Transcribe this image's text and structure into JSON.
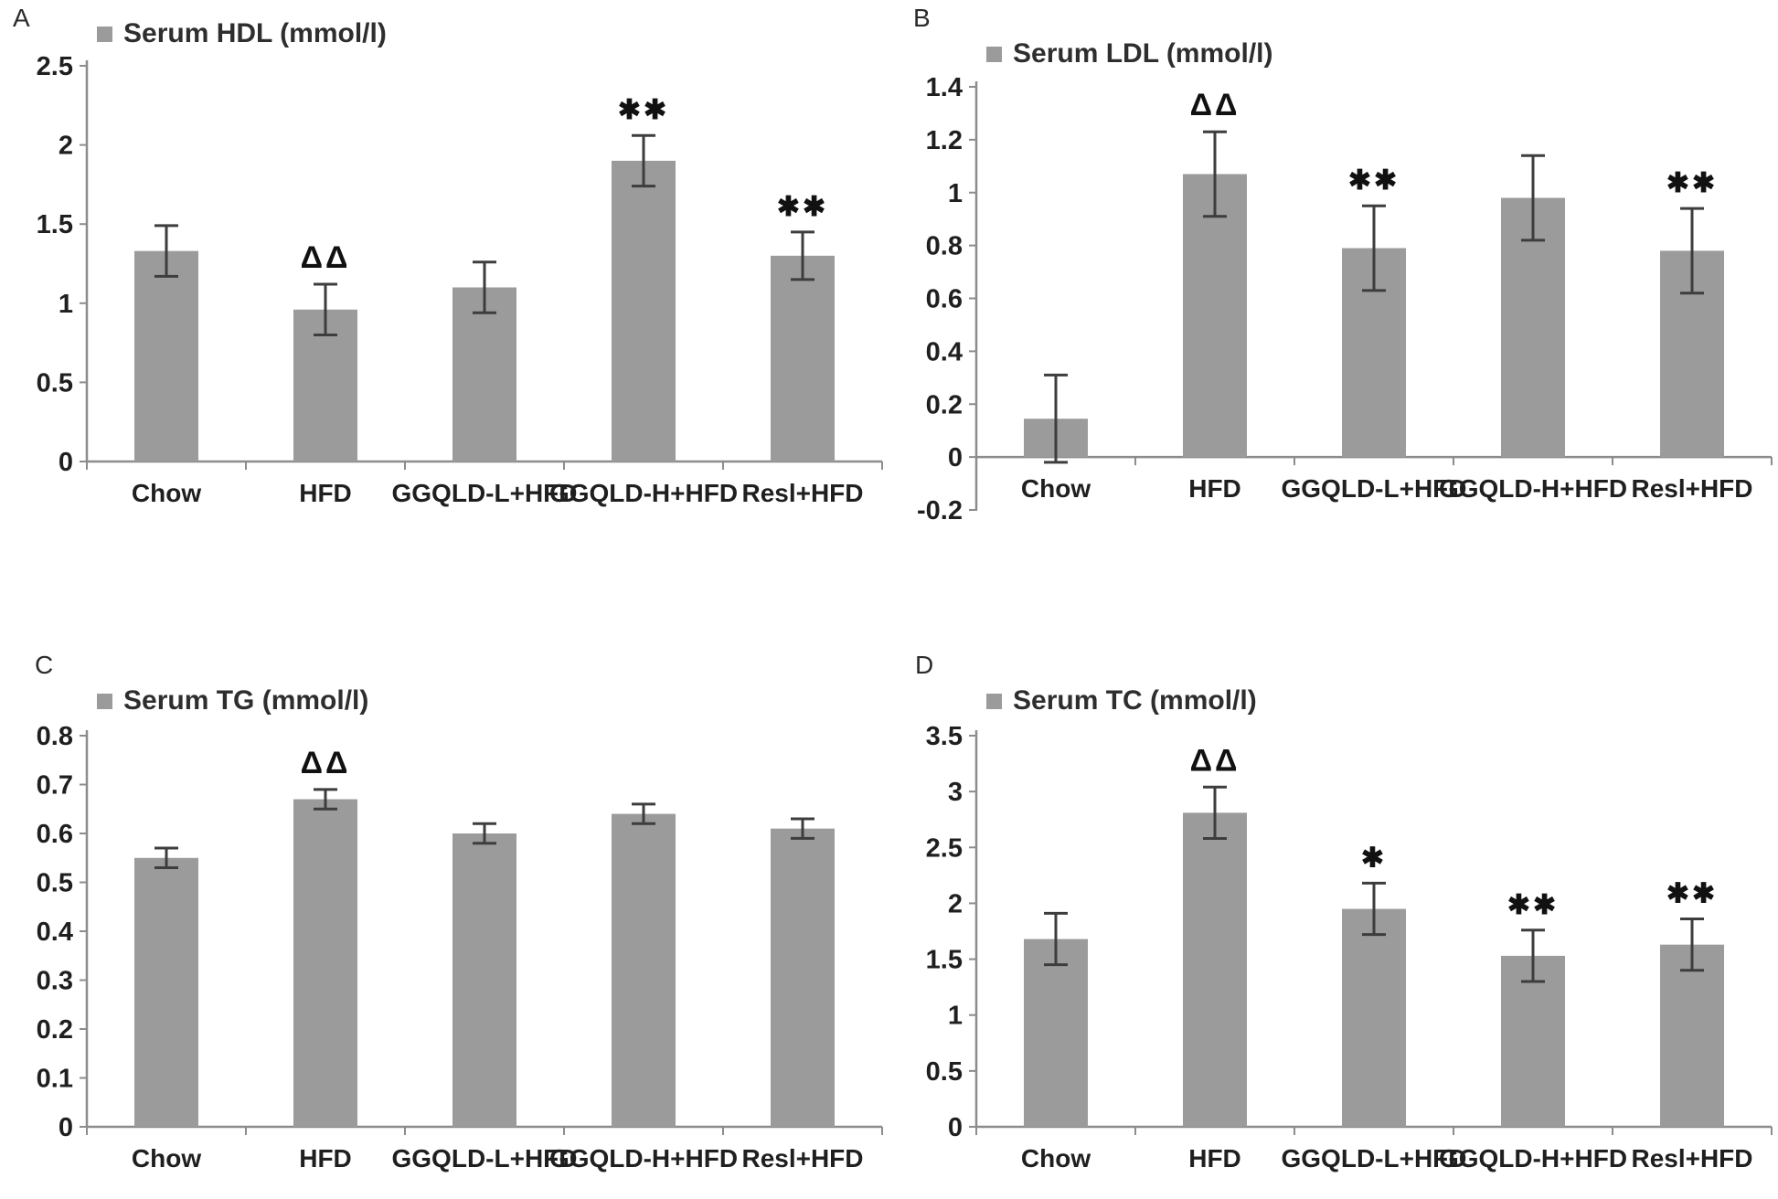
{
  "figure": {
    "bar_color": "#9b9b9b",
    "axis_color": "#8c8c8c",
    "error_color": "#3d3d3d",
    "text_color": "#1f1f1f",
    "annotation_color": "#111111",
    "background": "#ffffff"
  },
  "chart_data": [
    {
      "type": "bar",
      "panel": "A",
      "legend": "Serum HDL (mmol/l)",
      "legend_position": "top",
      "grid": false,
      "xlabel": "",
      "ylabel": "",
      "categories": [
        "Chow",
        "HFD",
        "GGQLD-L+HFD",
        "GGQLD-H+HFD",
        "Resl+HFD"
      ],
      "values": [
        1.33,
        0.96,
        1.1,
        1.9,
        1.3
      ],
      "errors": [
        0.16,
        0.16,
        0.16,
        0.16,
        0.15
      ],
      "annotations": [
        "",
        "ΔΔ",
        "",
        "✱✱",
        "✱✱"
      ],
      "ylim": [
        0,
        2.5
      ],
      "yticks": [
        0,
        0.5,
        1,
        1.5,
        2,
        2.5
      ],
      "ytick_labels": [
        "0",
        "0.5",
        "1",
        "1.5",
        "2",
        "2.5"
      ]
    },
    {
      "type": "bar",
      "panel": "B",
      "legend": "Serum LDL (mmol/l)",
      "legend_position": "top",
      "grid": false,
      "xlabel": "",
      "ylabel": "",
      "categories": [
        "Chow",
        "HFD",
        "GGQLD-L+HFD",
        "GGQLD-H+HFD",
        "Resl+HFD"
      ],
      "values": [
        0.145,
        1.07,
        0.79,
        0.98,
        0.78
      ],
      "errors": [
        0.165,
        0.16,
        0.16,
        0.16,
        0.16
      ],
      "annotations": [
        "",
        "ΔΔ",
        "✱✱",
        "",
        "✱✱"
      ],
      "ylim": [
        -0.2,
        1.4
      ],
      "yticks": [
        -0.2,
        0,
        0.2,
        0.4,
        0.6,
        0.8,
        1,
        1.2,
        1.4
      ],
      "ytick_labels": [
        "-0.2",
        "0",
        "0.2",
        "0.4",
        "0.6",
        "0.8",
        "1",
        "1.2",
        "1.4"
      ]
    },
    {
      "type": "bar",
      "panel": "C",
      "legend": "Serum TG (mmol/l)",
      "legend_position": "top",
      "grid": false,
      "xlabel": "",
      "ylabel": "",
      "categories": [
        "Chow",
        "HFD",
        "GGQLD-L+HFD",
        "GGQLD-H+HFD",
        "Resl+HFD"
      ],
      "values": [
        0.55,
        0.67,
        0.6,
        0.64,
        0.61
      ],
      "errors": [
        0.02,
        0.02,
        0.02,
        0.02,
        0.02
      ],
      "annotations": [
        "",
        "ΔΔ",
        "",
        "",
        ""
      ],
      "ylim": [
        0,
        0.8
      ],
      "yticks": [
        0,
        0.1,
        0.2,
        0.3,
        0.4,
        0.5,
        0.6,
        0.7,
        0.8
      ],
      "ytick_labels": [
        "0",
        "0.1",
        "0.2",
        "0.3",
        "0.4",
        "0.5",
        "0.6",
        "0.7",
        "0.8"
      ]
    },
    {
      "type": "bar",
      "panel": "D",
      "legend": "Serum TC (mmol/l)",
      "legend_position": "top",
      "grid": false,
      "xlabel": "",
      "ylabel": "",
      "categories": [
        "Chow",
        "HFD",
        "GGQLD-L+HFD",
        "GGQLD-H+HFD",
        "Resl+HFD"
      ],
      "values": [
        1.68,
        2.81,
        1.95,
        1.53,
        1.63
      ],
      "errors": [
        0.23,
        0.23,
        0.23,
        0.23,
        0.23
      ],
      "annotations": [
        "",
        "ΔΔ",
        "✱",
        "✱✱",
        "✱✱"
      ],
      "ylim": [
        0,
        3.5
      ],
      "yticks": [
        0,
        0.5,
        1,
        1.5,
        2,
        2.5,
        3,
        3.5
      ],
      "ytick_labels": [
        "0",
        "0.5",
        "1",
        "1.5",
        "2",
        "2.5",
        "3",
        "3.5"
      ]
    }
  ]
}
